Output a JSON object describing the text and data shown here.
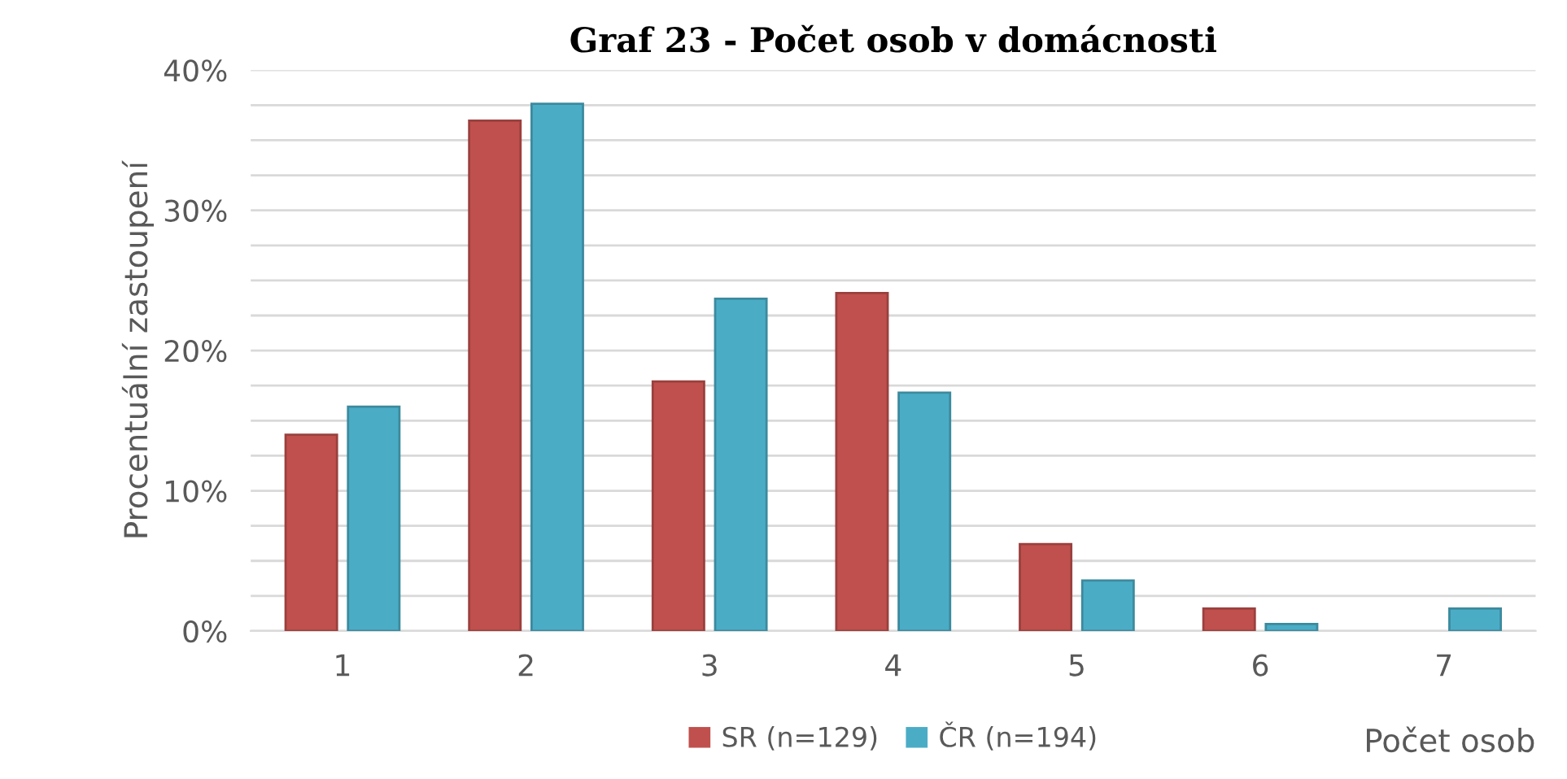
{
  "chart_data": {
    "type": "bar",
    "title": "Graf 23 - Počet osob v domácnosti",
    "xlabel": "Počet osob",
    "ylabel": "Procentuální zastoupení",
    "categories": [
      "1",
      "2",
      "3",
      "4",
      "5",
      "6",
      "7"
    ],
    "series": [
      {
        "name": "SR (n=129)",
        "color": "#c0504d",
        "values": [
          14.0,
          36.4,
          17.8,
          24.1,
          6.2,
          1.6,
          null
        ]
      },
      {
        "name": "ČR (n=194)",
        "color": "#4bacc6",
        "values": [
          16.0,
          37.6,
          23.7,
          17.0,
          3.6,
          0.5,
          1.6
        ]
      }
    ],
    "ylim": [
      0,
      40
    ],
    "yticks": [
      {
        "value": 0,
        "label": "0%"
      },
      {
        "value": 2.5,
        "label": null
      },
      {
        "value": 5,
        "label": null
      },
      {
        "value": 7.5,
        "label": null
      },
      {
        "value": 10,
        "label": "10%"
      },
      {
        "value": 12.5,
        "label": null
      },
      {
        "value": 15,
        "label": null
      },
      {
        "value": 17.5,
        "label": null
      },
      {
        "value": 20,
        "label": "20%"
      },
      {
        "value": 22.5,
        "label": null
      },
      {
        "value": 25,
        "label": null
      },
      {
        "value": 27.5,
        "label": null
      },
      {
        "value": 30,
        "label": "30%"
      },
      {
        "value": 32.5,
        "label": null
      },
      {
        "value": 35,
        "label": null
      },
      {
        "value": 37.5,
        "label": null
      },
      {
        "value": 40,
        "label": "40%"
      }
    ],
    "grid": "y",
    "legend": "bottom"
  }
}
